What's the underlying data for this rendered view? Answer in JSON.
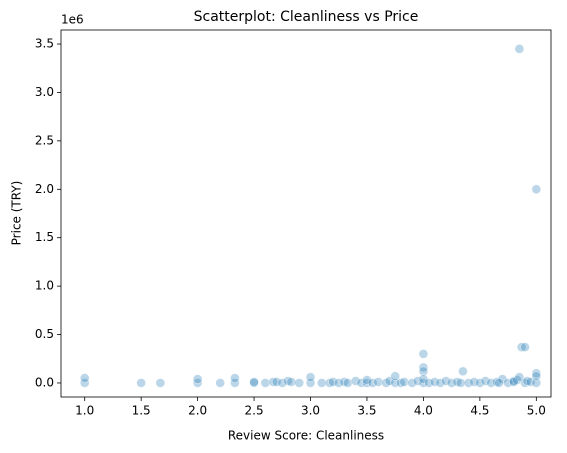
{
  "chart_data": {
    "type": "scatter",
    "title": "Scatterplot: Cleanliness vs Price",
    "x_label": "Review Score: Cleanliness",
    "y_label": "Price (TRY)",
    "y_offset_label": "1e6",
    "color": "#1f77b4",
    "x": [
      1.0,
      1.0,
      1.5,
      1.67,
      2.0,
      2.0,
      2.2,
      2.33,
      2.33,
      2.5,
      2.5,
      2.6,
      2.67,
      2.7,
      2.75,
      2.8,
      2.83,
      2.9,
      3.0,
      3.0,
      3.1,
      3.17,
      3.2,
      3.25,
      3.3,
      3.33,
      3.4,
      3.45,
      3.5,
      3.5,
      3.55,
      3.6,
      3.67,
      3.7,
      3.75,
      3.75,
      3.8,
      3.83,
      3.9,
      3.95,
      4.0,
      4.0,
      4.0,
      4.0,
      4.0,
      4.05,
      4.1,
      4.15,
      4.2,
      4.25,
      4.3,
      4.33,
      4.35,
      4.4,
      4.45,
      4.5,
      4.55,
      4.6,
      4.65,
      4.7,
      4.75,
      4.8,
      4.83,
      4.85,
      4.85,
      4.87,
      4.9,
      4.9,
      4.92,
      4.95,
      5.0,
      5.0,
      5.0,
      5.0,
      4.8,
      4.67
    ],
    "values": [
      0,
      0.05,
      0,
      0,
      0,
      0.04,
      0,
      0,
      0.05,
      0,
      0.01,
      0,
      0.01,
      0.01,
      0,
      0.02,
      0.01,
      0,
      0,
      0.06,
      0,
      0,
      0.01,
      0,
      0.01,
      0,
      0.02,
      0,
      0,
      0.03,
      0,
      0.01,
      0,
      0.02,
      0,
      0.07,
      0,
      0.01,
      0,
      0.02,
      0,
      0.3,
      0.16,
      0.12,
      0.04,
      0,
      0.01,
      0,
      0.02,
      0,
      0.01,
      0,
      0.12,
      0,
      0.01,
      0,
      0.02,
      0,
      0.01,
      0.04,
      0,
      0.02,
      0.03,
      3.45,
      0.06,
      0.37,
      0.37,
      0,
      0.02,
      0.01,
      2.0,
      0,
      0.1,
      0.07,
      0.01,
      0
    ],
    "xlim": [
      0.79,
      5.13
    ],
    "xticks": [
      {
        "value": 1,
        "label": "1.0"
      },
      1.5,
      {
        "value": 2,
        "label": "2.0"
      },
      2.5,
      {
        "value": 3,
        "label": "3.0"
      },
      3.5,
      {
        "value": 4,
        "label": "4.0"
      },
      4.5,
      {
        "value": 5,
        "label": "5.0"
      }
    ],
    "ylim": [
      -0.145,
      3.645
    ],
    "yticks": [
      {
        "value": 0,
        "label": "0.0"
      },
      0.5,
      {
        "value": 1,
        "label": "1.0"
      },
      1.5,
      {
        "value": 2,
        "label": "2.0"
      },
      2.5,
      {
        "value": 3,
        "label": "3.0"
      },
      3.5
    ],
    "grid": false
  }
}
